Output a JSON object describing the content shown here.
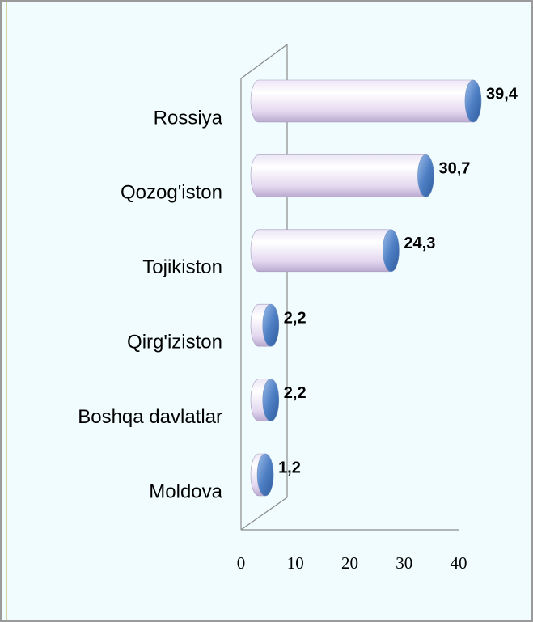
{
  "chart_data": {
    "type": "bar",
    "orientation": "horizontal",
    "categories": [
      "Rossiya",
      "Qozog'iston",
      "Tojikiston",
      "Qirg'iziston",
      "Boshqa davlatlar",
      "Moldova"
    ],
    "values": [
      39.4,
      30.7,
      24.3,
      2.2,
      2.2,
      1.2
    ],
    "value_labels": [
      "39,4",
      "30,7",
      "24,3",
      "2,2",
      "2,2",
      "1,2"
    ],
    "color": "#5b86c8",
    "xlim": [
      0,
      40
    ],
    "xticks": [
      0,
      10,
      20,
      30,
      40
    ],
    "grid": false
  }
}
